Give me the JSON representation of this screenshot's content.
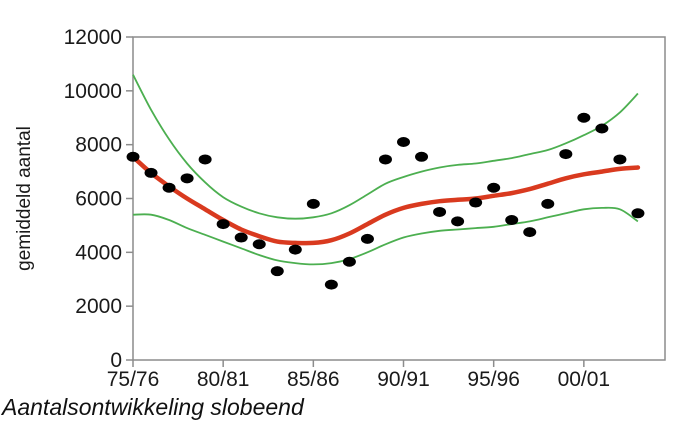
{
  "chart_data": {
    "type": "scatter",
    "title": "",
    "xlabel": "",
    "ylabel": "gemiddeld aantal",
    "xlim": [
      1975,
      2004.5
    ],
    "ylim": [
      0,
      12000
    ],
    "yticks": [
      0,
      2000,
      4000,
      6000,
      8000,
      10000,
      12000
    ],
    "xtick_values": [
      1975,
      1980,
      1985,
      1990,
      1995,
      2000
    ],
    "xtick_labels": [
      "75/76",
      "80/81",
      "85/86",
      "90/91",
      "95/96",
      "00/01"
    ],
    "grid": false,
    "legend": "none",
    "colors": {
      "points": "#000000",
      "trend": "#d93a1f",
      "interval": "#4caf50",
      "axis": "#8c8c8c"
    },
    "series": [
      {
        "kind": "points",
        "x": [
          1975,
          1976,
          1977,
          1978,
          1979,
          1980,
          1981,
          1982,
          1983,
          1984,
          1985,
          1986,
          1987,
          1988,
          1989,
          1990,
          1991,
          1992,
          1993,
          1994,
          1995,
          1996,
          1997,
          1998,
          1999,
          2000,
          2001,
          2002,
          2003
        ],
        "y": [
          7550,
          6950,
          6400,
          6750,
          7450,
          5050,
          4550,
          4300,
          3300,
          4100,
          5800,
          2800,
          3650,
          4500,
          7450,
          8100,
          7550,
          5500,
          5150,
          5850,
          6400,
          5200,
          4750,
          5800,
          7650,
          9000,
          8600,
          7450,
          5450
        ]
      },
      {
        "kind": "trend",
        "x": [
          1975,
          1976,
          1977,
          1978,
          1979,
          1980,
          1981,
          1982,
          1983,
          1984,
          1985,
          1986,
          1987,
          1988,
          1989,
          1990,
          1991,
          1992,
          1993,
          1994,
          1995,
          1996,
          1997,
          1998,
          1999,
          2000,
          2001,
          2002,
          2003
        ],
        "y": [
          7550,
          6950,
          6450,
          6000,
          5600,
          5200,
          4850,
          4600,
          4400,
          4350,
          4350,
          4450,
          4700,
          5050,
          5400,
          5650,
          5800,
          5900,
          5950,
          6000,
          6100,
          6200,
          6350,
          6550,
          6750,
          6900,
          7000,
          7100,
          7150
        ]
      },
      {
        "kind": "upper",
        "x": [
          1975,
          1976,
          1977,
          1978,
          1979,
          1980,
          1981,
          1982,
          1983,
          1984,
          1985,
          1986,
          1987,
          1988,
          1989,
          1990,
          1991,
          1992,
          1993,
          1994,
          1995,
          1996,
          1997,
          1998,
          1999,
          2000,
          2001,
          2002,
          2003
        ],
        "y": [
          10600,
          9300,
          8200,
          7300,
          6600,
          6050,
          5700,
          5450,
          5300,
          5250,
          5300,
          5450,
          5750,
          6150,
          6550,
          6800,
          7000,
          7150,
          7250,
          7300,
          7400,
          7500,
          7650,
          7800,
          8050,
          8350,
          8700,
          9200,
          9900
        ]
      },
      {
        "kind": "lower",
        "x": [
          1975,
          1976,
          1977,
          1978,
          1979,
          1980,
          1981,
          1982,
          1983,
          1984,
          1985,
          1986,
          1987,
          1988,
          1989,
          1990,
          1991,
          1992,
          1993,
          1994,
          1995,
          1996,
          1997,
          1998,
          1999,
          2000,
          2001,
          2002,
          2003
        ],
        "y": [
          5400,
          5400,
          5200,
          4900,
          4650,
          4400,
          4150,
          3900,
          3700,
          3600,
          3550,
          3600,
          3750,
          4000,
          4300,
          4550,
          4700,
          4800,
          4850,
          4900,
          4950,
          5050,
          5150,
          5300,
          5450,
          5600,
          5650,
          5600,
          5150
        ]
      }
    ]
  },
  "caption": "Aantalsontwikkeling slobeend"
}
